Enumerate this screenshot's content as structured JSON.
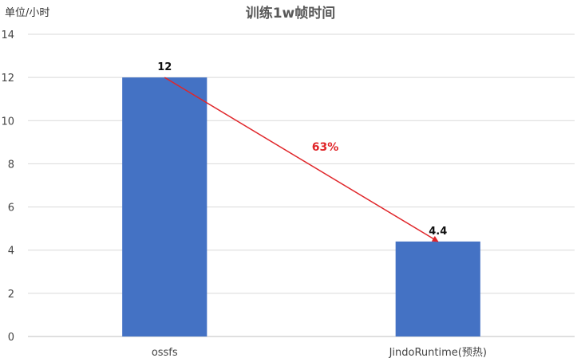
{
  "chart_data": {
    "type": "bar",
    "title": "训练1w帧时间",
    "ylabel": "单位/小时",
    "xlabel": "",
    "categories": [
      "ossfs",
      "JindoRuntime(预热)"
    ],
    "values": [
      12,
      4.4
    ],
    "data_labels": [
      "12",
      "4.4"
    ],
    "ylim": [
      0,
      14
    ],
    "yticks": [
      0,
      2,
      4,
      6,
      8,
      10,
      12,
      14
    ],
    "grid": true,
    "legend": "none",
    "bar_color": "#4472c4",
    "annotation": {
      "text": "63%",
      "type": "arrow",
      "from_category": "ossfs",
      "to_category": "JindoRuntime(预热)",
      "color": "#e0262a"
    }
  }
}
